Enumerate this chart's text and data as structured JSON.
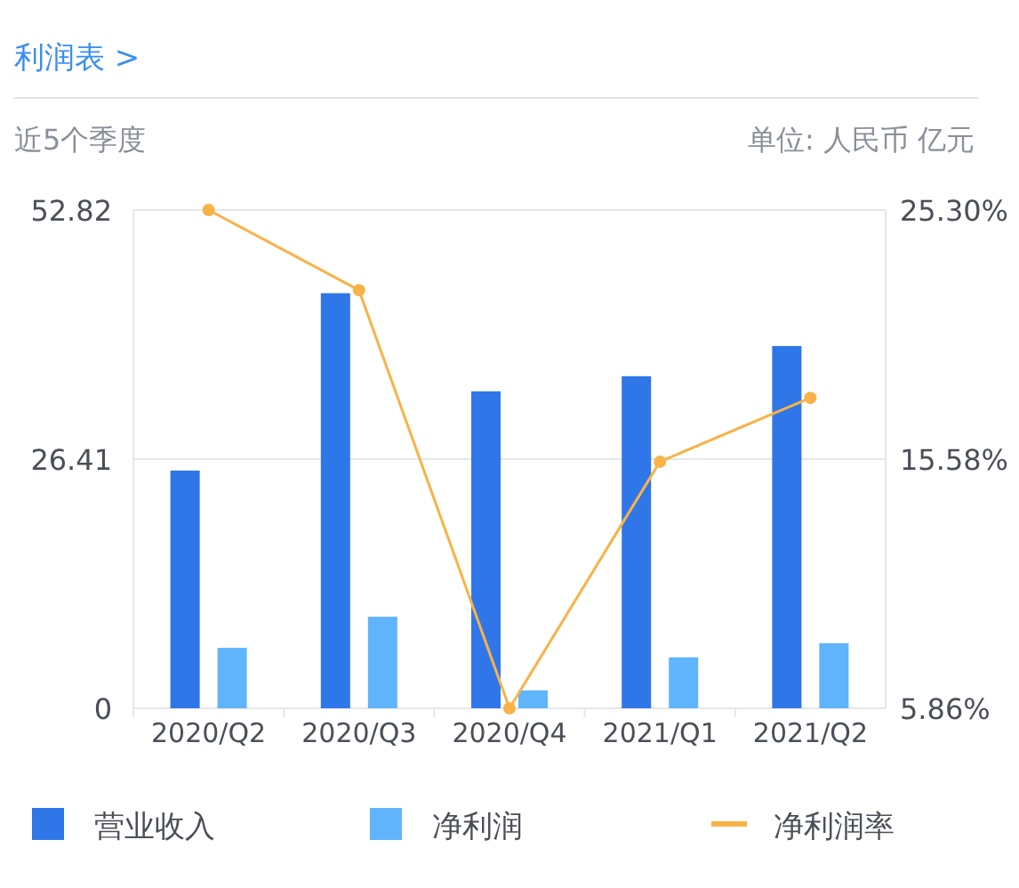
{
  "chart_data": {
    "type": "bar",
    "title": "利润表 >",
    "subtitle": "近5个季度",
    "annotations": [
      "单位: 人民币 亿元"
    ],
    "categories": [
      "2020/Q2",
      "2020/Q3",
      "2020/Q4",
      "2021/Q1",
      "2021/Q2"
    ],
    "series": [
      {
        "name": "营业收入",
        "color": "#2f76e8",
        "values": [
          25.2,
          44.0,
          33.6,
          35.2,
          38.4
        ]
      },
      {
        "name": "净利润",
        "color": "#5fb4fc",
        "values": [
          6.4,
          9.7,
          1.9,
          5.4,
          6.9
        ]
      },
      {
        "name": "净利润率",
        "type": "line",
        "axis": "y2",
        "color": "#f9b248",
        "values": [
          25.3,
          22.17,
          5.86,
          15.48,
          17.97
        ]
      }
    ],
    "ylim": [
      0,
      52.82
    ],
    "yticks": [
      0,
      26.41,
      52.82
    ],
    "y2lim": [
      5.86,
      25.3
    ],
    "y2ticks": [
      {
        "value": 5.86,
        "label": "5.86%"
      },
      {
        "value": 15.58,
        "label": "15.58%"
      },
      {
        "value": 25.3,
        "label": "25.30%"
      }
    ],
    "grid": "y",
    "legend": "bottom",
    "marker": "circle"
  }
}
